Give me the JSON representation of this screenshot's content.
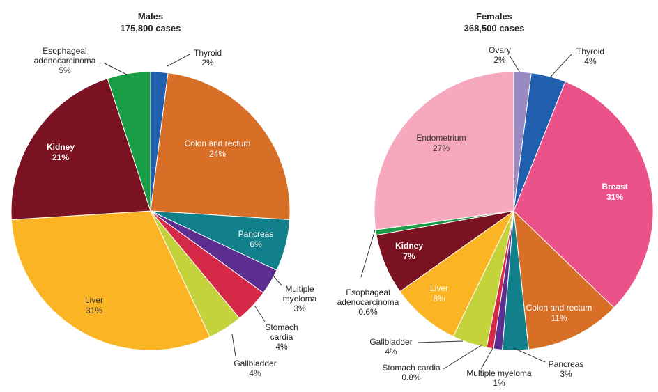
{
  "chart_data": [
    {
      "type": "pie",
      "title": "Males",
      "subtitle": "175,800 cases",
      "slices": [
        {
          "label": "Thyroid",
          "value": 2,
          "value_text": "2%",
          "color": "#1f5fae"
        },
        {
          "label": "Colon and rectum",
          "value": 24,
          "value_text": "24%",
          "color": "#d86f26"
        },
        {
          "label": "Pancreas",
          "value": 6,
          "value_text": "6%",
          "color": "#11808a"
        },
        {
          "label": "Multiple myeloma",
          "value": 3,
          "value_text": "3%",
          "color": "#5b2e8f"
        },
        {
          "label": "Stomach cardia",
          "value": 4,
          "value_text": "4%",
          "color": "#d42a47"
        },
        {
          "label": "Gallbladder",
          "value": 4,
          "value_text": "4%",
          "color": "#c4d33b"
        },
        {
          "label": "Liver",
          "value": 31,
          "value_text": "31%",
          "color": "#fbb424"
        },
        {
          "label": "Kidney",
          "value": 21,
          "value_text": "21%",
          "color": "#7b1222"
        },
        {
          "label": "Esophageal adenocarcinoma",
          "value": 5,
          "value_text": "5%",
          "color": "#189c45"
        }
      ]
    },
    {
      "type": "pie",
      "title": "Females",
      "subtitle": "368,500 cases",
      "slices": [
        {
          "label": "Ovary",
          "value": 2,
          "value_text": "2%",
          "color": "#9a8ac2"
        },
        {
          "label": "Thyroid",
          "value": 4,
          "value_text": "4%",
          "color": "#1f5fae"
        },
        {
          "label": "Breast",
          "value": 31,
          "value_text": "31%",
          "color": "#ec528a"
        },
        {
          "label": "Colon and rectum",
          "value": 11,
          "value_text": "11%",
          "color": "#d86f26"
        },
        {
          "label": "Pancreas",
          "value": 3,
          "value_text": "3%",
          "color": "#11808a"
        },
        {
          "label": "Multiple myeloma",
          "value": 1,
          "value_text": "1%",
          "color": "#5b2e8f"
        },
        {
          "label": "Stomach cardia",
          "value": 0.8,
          "value_text": "0.8%",
          "color": "#d42a47"
        },
        {
          "label": "Gallbladder",
          "value": 4,
          "value_text": "4%",
          "color": "#c4d33b"
        },
        {
          "label": "Liver",
          "value": 8,
          "value_text": "8%",
          "color": "#fbb424"
        },
        {
          "label": "Kidney",
          "value": 7,
          "value_text": "7%",
          "color": "#7b1222"
        },
        {
          "label": "Esophageal adenocarcinoma",
          "value": 0.6,
          "value_text": "0.6%",
          "color": "#189c45"
        },
        {
          "label": "Endometrium",
          "value": 27,
          "value_text": "27%",
          "color": "#f6a8bf"
        }
      ]
    }
  ]
}
